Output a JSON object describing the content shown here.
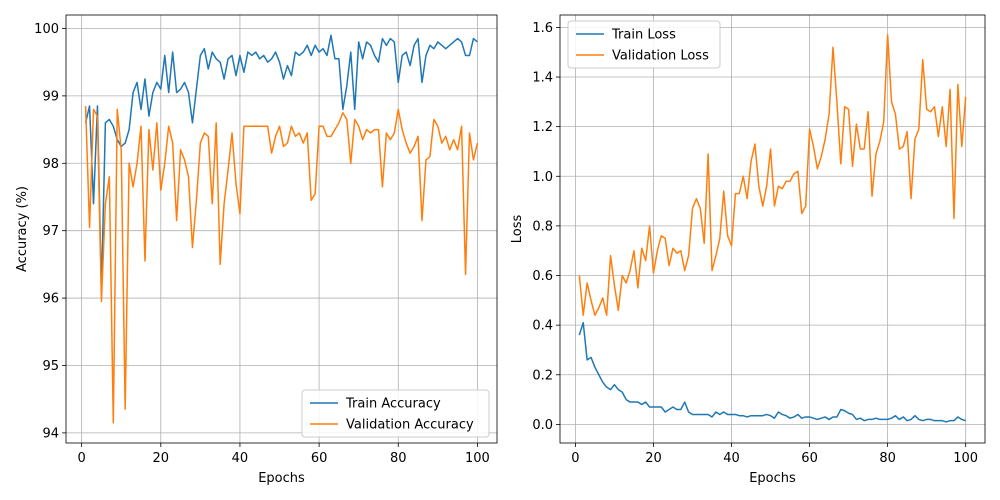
{
  "colors": {
    "train": "#1f77b4",
    "validation": "#ff7f0e",
    "grid": "#b0b0b0",
    "frame": "#000000"
  },
  "chart_data": [
    {
      "type": "line",
      "xlabel": "Epochs",
      "ylabel": "Accuracy (%)",
      "xlim": [
        -3.95,
        104.95
      ],
      "ylim": [
        93.85,
        100.2
      ],
      "xticks": [
        0,
        20,
        40,
        60,
        80,
        100
      ],
      "yticks": [
        94,
        95,
        96,
        97,
        98,
        99,
        100
      ],
      "grid": true,
      "legend_position": "bottom-right",
      "x_start": 1,
      "series": [
        {
          "name": "Train Accuracy",
          "color": "#1f77b4",
          "values": [
            98.6,
            98.85,
            97.4,
            98.85,
            96.1,
            98.6,
            98.65,
            98.55,
            98.35,
            98.25,
            98.3,
            98.5,
            99.05,
            99.2,
            98.8,
            99.25,
            98.7,
            99.05,
            99.2,
            99.1,
            99.6,
            99.05,
            99.65,
            99.05,
            99.1,
            99.2,
            99.05,
            98.6,
            99.1,
            99.6,
            99.7,
            99.4,
            99.65,
            99.55,
            99.5,
            99.25,
            99.55,
            99.6,
            99.3,
            99.6,
            99.35,
            99.65,
            99.6,
            99.65,
            99.55,
            99.6,
            99.5,
            99.55,
            99.65,
            99.5,
            99.25,
            99.45,
            99.3,
            99.65,
            99.6,
            99.65,
            99.75,
            99.6,
            99.75,
            99.65,
            99.7,
            99.6,
            99.9,
            99.55,
            99.55,
            98.8,
            99.15,
            99.65,
            98.8,
            99.8,
            99.55,
            99.8,
            99.75,
            99.6,
            99.5,
            99.85,
            99.75,
            99.85,
            99.8,
            99.2,
            99.6,
            99.65,
            99.45,
            99.75,
            99.85,
            99.2,
            99.6,
            99.75,
            99.7,
            99.8,
            99.75,
            99.7,
            99.75,
            99.8,
            99.85,
            99.8,
            99.6,
            99.6,
            99.85,
            99.8
          ]
        },
        {
          "name": "Validation Accuracy",
          "color": "#ff7f0e",
          "values": [
            98.85,
            97.05,
            98.8,
            98.7,
            95.95,
            97.4,
            97.8,
            94.15,
            98.8,
            98.2,
            94.35,
            98.0,
            97.65,
            98.0,
            98.55,
            96.55,
            98.5,
            97.9,
            98.6,
            97.6,
            98.0,
            98.55,
            98.3,
            97.15,
            98.2,
            98.05,
            97.8,
            96.75,
            97.45,
            98.3,
            98.45,
            98.4,
            97.4,
            98.6,
            96.5,
            97.4,
            97.9,
            98.45,
            97.7,
            97.25,
            98.55,
            98.55,
            98.55,
            98.55,
            98.55,
            98.55,
            98.55,
            98.15,
            98.4,
            98.55,
            98.25,
            98.3,
            98.55,
            98.4,
            98.45,
            98.3,
            98.45,
            97.45,
            97.55,
            98.55,
            98.55,
            98.4,
            98.4,
            98.5,
            98.6,
            98.75,
            98.65,
            98.0,
            98.65,
            98.55,
            98.35,
            98.5,
            98.45,
            98.5,
            98.5,
            97.65,
            98.45,
            98.35,
            98.45,
            98.8,
            98.5,
            98.3,
            98.15,
            98.25,
            98.4,
            97.15,
            98.05,
            98.1,
            98.65,
            98.55,
            98.3,
            98.4,
            98.2,
            98.35,
            98.2,
            98.55,
            96.35,
            98.45,
            98.05,
            98.3
          ]
        }
      ]
    },
    {
      "type": "line",
      "xlabel": "Epochs",
      "ylabel": "Loss",
      "xlim": [
        -3.95,
        104.95
      ],
      "ylim": [
        -0.075,
        1.65
      ],
      "xticks": [
        0,
        20,
        40,
        60,
        80,
        100
      ],
      "yticks": [
        0.0,
        0.2,
        0.4,
        0.6,
        0.8,
        1.0,
        1.2,
        1.4,
        1.6
      ],
      "grid": true,
      "legend_position": "top-left",
      "x_start": 1,
      "series": [
        {
          "name": "Train Loss",
          "color": "#1f77b4",
          "values": [
            0.36,
            0.41,
            0.26,
            0.27,
            0.23,
            0.2,
            0.17,
            0.15,
            0.14,
            0.16,
            0.14,
            0.13,
            0.1,
            0.09,
            0.09,
            0.09,
            0.08,
            0.09,
            0.07,
            0.07,
            0.07,
            0.07,
            0.05,
            0.06,
            0.07,
            0.06,
            0.06,
            0.09,
            0.05,
            0.04,
            0.04,
            0.04,
            0.04,
            0.04,
            0.03,
            0.05,
            0.04,
            0.05,
            0.04,
            0.04,
            0.04,
            0.035,
            0.035,
            0.03,
            0.035,
            0.035,
            0.035,
            0.035,
            0.04,
            0.035,
            0.025,
            0.05,
            0.04,
            0.035,
            0.025,
            0.03,
            0.04,
            0.025,
            0.03,
            0.03,
            0.025,
            0.02,
            0.025,
            0.03,
            0.02,
            0.03,
            0.03,
            0.06,
            0.055,
            0.045,
            0.04,
            0.02,
            0.025,
            0.015,
            0.02,
            0.02,
            0.025,
            0.02,
            0.02,
            0.02,
            0.025,
            0.035,
            0.02,
            0.03,
            0.015,
            0.02,
            0.035,
            0.02,
            0.015,
            0.02,
            0.02,
            0.015,
            0.015,
            0.015,
            0.01,
            0.015,
            0.015,
            0.03,
            0.02,
            0.015
          ]
        },
        {
          "name": "Validation Loss",
          "color": "#ff7f0e",
          "values": [
            0.6,
            0.44,
            0.57,
            0.5,
            0.44,
            0.47,
            0.51,
            0.44,
            0.68,
            0.56,
            0.46,
            0.6,
            0.57,
            0.62,
            0.7,
            0.55,
            0.71,
            0.66,
            0.8,
            0.61,
            0.7,
            0.76,
            0.75,
            0.64,
            0.71,
            0.69,
            0.7,
            0.62,
            0.68,
            0.87,
            0.91,
            0.87,
            0.73,
            1.09,
            0.62,
            0.68,
            0.75,
            0.94,
            0.76,
            0.72,
            0.93,
            0.93,
            1.0,
            0.91,
            1.06,
            1.13,
            0.96,
            0.88,
            0.96,
            1.11,
            0.88,
            0.96,
            0.95,
            0.98,
            0.98,
            1.01,
            1.02,
            0.85,
            0.88,
            1.19,
            1.12,
            1.03,
            1.08,
            1.15,
            1.25,
            1.52,
            1.3,
            1.05,
            1.28,
            1.27,
            1.04,
            1.21,
            1.11,
            1.11,
            1.26,
            0.92,
            1.09,
            1.14,
            1.22,
            1.57,
            1.3,
            1.25,
            1.11,
            1.12,
            1.18,
            0.91,
            1.15,
            1.19,
            1.47,
            1.27,
            1.26,
            1.28,
            1.16,
            1.28,
            1.12,
            1.35,
            0.83,
            1.37,
            1.12,
            1.32
          ]
        }
      ]
    }
  ]
}
